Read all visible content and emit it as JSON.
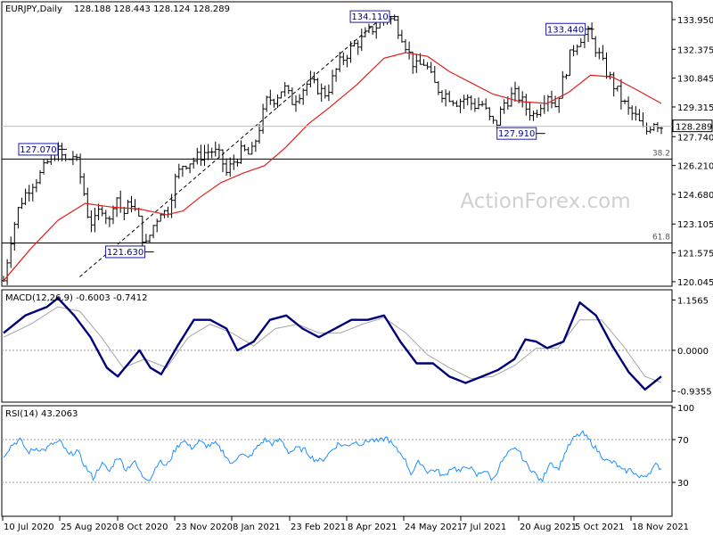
{
  "chart_data": {
    "type": "ohlc",
    "header": {
      "symbol_timeframe": "EURJPY,Daily",
      "ohlc_text": "128.188 128.443 128.124 128.289"
    },
    "watermark": "ActionForex.com",
    "colors": {
      "candles": "#000000",
      "moving_average": "#e0201b",
      "trendline": "#000000",
      "macd": "#00007a",
      "macd_signal": "#a6a6a6",
      "rsi": "#1e90ff",
      "label_border": "#1a1aaa",
      "watermark": "#d0d0d0"
    },
    "price_axis": {
      "ylim": [
        119.9,
        134.8
      ],
      "tick_labels": [
        "133.950",
        "132.375",
        "130.845",
        "129.315",
        "127.740",
        "126.210",
        "124.680",
        "123.105",
        "121.575",
        "120.045"
      ],
      "tick_values": [
        133.95,
        132.375,
        130.845,
        129.315,
        127.74,
        126.21,
        124.68,
        123.105,
        121.575,
        120.045
      ],
      "current_price_label": "128.289",
      "current_price": 128.289
    },
    "date_axis": {
      "labels": [
        "10 Jul 2020",
        "25 Aug 2020",
        "8 Oct 2020",
        "23 Nov 2020",
        "8 Jan 2021",
        "23 Feb 2021",
        "8 Apr 2021",
        "24 May 2021",
        "7 Jul 2021",
        "20 Aug 2021",
        "5 Oct 2021",
        "18 Nov 2021"
      ]
    },
    "annotations": [
      {
        "label": "127.070",
        "value": 127.07,
        "date_index": 1.0
      },
      {
        "label": "121.630",
        "value": 121.63,
        "date_index": 2.6
      },
      {
        "label": "134.110",
        "value": 134.11,
        "date_index": 7.1
      },
      {
        "label": "127.910",
        "value": 127.91,
        "date_index": 9.8
      },
      {
        "label": "133.440",
        "value": 133.44,
        "date_index": 10.7
      }
    ],
    "fib_levels": [
      {
        "label": "38.2",
        "value": 126.55
      },
      {
        "label": "61.8",
        "value": 122.1
      }
    ],
    "trendline": {
      "from": {
        "date_index": 1.4,
        "value": 120.3
      },
      "to": {
        "date_index": 6.9,
        "value": 133.9
      }
    },
    "price_series": [
      {
        "t": 0.0,
        "v": 120.1
      },
      {
        "t": 0.15,
        "v": 122.6
      },
      {
        "t": 0.3,
        "v": 124.2
      },
      {
        "t": 0.5,
        "v": 125.2
      },
      {
        "t": 0.7,
        "v": 125.8
      },
      {
        "t": 0.85,
        "v": 126.6
      },
      {
        "t": 1.0,
        "v": 127.0
      },
      {
        "t": 1.15,
        "v": 126.4
      },
      {
        "t": 1.3,
        "v": 126.8
      },
      {
        "t": 1.45,
        "v": 125.2
      },
      {
        "t": 1.55,
        "v": 123.6
      },
      {
        "t": 1.65,
        "v": 123.0
      },
      {
        "t": 1.8,
        "v": 124.1
      },
      {
        "t": 1.95,
        "v": 123.2
      },
      {
        "t": 2.05,
        "v": 124.8
      },
      {
        "t": 2.2,
        "v": 123.6
      },
      {
        "t": 2.35,
        "v": 124.3
      },
      {
        "t": 2.5,
        "v": 123.2
      },
      {
        "t": 2.6,
        "v": 121.8
      },
      {
        "t": 2.75,
        "v": 123.0
      },
      {
        "t": 2.9,
        "v": 123.9
      },
      {
        "t": 3.0,
        "v": 123.6
      },
      {
        "t": 3.15,
        "v": 125.4
      },
      {
        "t": 3.3,
        "v": 126.3
      },
      {
        "t": 3.5,
        "v": 126.5
      },
      {
        "t": 3.7,
        "v": 126.9
      },
      {
        "t": 3.85,
        "v": 127.0
      },
      {
        "t": 4.0,
        "v": 126.6
      },
      {
        "t": 4.1,
        "v": 125.8
      },
      {
        "t": 4.25,
        "v": 126.5
      },
      {
        "t": 4.4,
        "v": 127.0
      },
      {
        "t": 4.55,
        "v": 126.7
      },
      {
        "t": 4.7,
        "v": 128.2
      },
      {
        "t": 4.85,
        "v": 129.7
      },
      {
        "t": 5.0,
        "v": 129.8
      },
      {
        "t": 5.15,
        "v": 130.4
      },
      {
        "t": 5.3,
        "v": 129.6
      },
      {
        "t": 5.45,
        "v": 130.1
      },
      {
        "t": 5.6,
        "v": 130.6
      },
      {
        "t": 5.75,
        "v": 130.4
      },
      {
        "t": 5.9,
        "v": 130.0
      },
      {
        "t": 6.0,
        "v": 130.4
      },
      {
        "t": 6.15,
        "v": 131.5
      },
      {
        "t": 6.3,
        "v": 132.1
      },
      {
        "t": 6.45,
        "v": 132.6
      },
      {
        "t": 6.6,
        "v": 132.9
      },
      {
        "t": 6.75,
        "v": 133.4
      },
      {
        "t": 6.9,
        "v": 133.7
      },
      {
        "t": 7.05,
        "v": 134.1
      },
      {
        "t": 7.2,
        "v": 133.8
      },
      {
        "t": 7.35,
        "v": 133.0
      },
      {
        "t": 7.5,
        "v": 131.8
      },
      {
        "t": 7.6,
        "v": 131.4
      },
      {
        "t": 7.75,
        "v": 131.7
      },
      {
        "t": 7.9,
        "v": 130.6
      },
      {
        "t": 8.05,
        "v": 130.1
      },
      {
        "t": 8.2,
        "v": 129.9
      },
      {
        "t": 8.35,
        "v": 129.6
      },
      {
        "t": 8.5,
        "v": 129.8
      },
      {
        "t": 8.65,
        "v": 129.4
      },
      {
        "t": 8.8,
        "v": 129.5
      },
      {
        "t": 8.95,
        "v": 128.6
      },
      {
        "t": 9.05,
        "v": 128.3
      },
      {
        "t": 9.2,
        "v": 129.5
      },
      {
        "t": 9.35,
        "v": 129.9
      },
      {
        "t": 9.45,
        "v": 130.0
      },
      {
        "t": 9.6,
        "v": 129.3
      },
      {
        "t": 9.75,
        "v": 128.9
      },
      {
        "t": 9.9,
        "v": 129.6
      },
      {
        "t": 10.0,
        "v": 130.1
      },
      {
        "t": 10.15,
        "v": 129.4
      },
      {
        "t": 10.3,
        "v": 130.8
      },
      {
        "t": 10.45,
        "v": 132.3
      },
      {
        "t": 10.6,
        "v": 133.0
      },
      {
        "t": 10.75,
        "v": 133.2
      },
      {
        "t": 10.9,
        "v": 132.4
      },
      {
        "t": 11.05,
        "v": 131.4
      },
      {
        "t": 11.2,
        "v": 130.6
      },
      {
        "t": 11.35,
        "v": 129.8
      },
      {
        "t": 11.5,
        "v": 129.1
      },
      {
        "t": 11.65,
        "v": 128.7
      },
      {
        "t": 11.8,
        "v": 127.9
      },
      {
        "t": 11.95,
        "v": 128.6
      },
      {
        "t": 12.1,
        "v": 128.3
      }
    ],
    "moving_average": [
      {
        "t": 0.0,
        "v": 120.1
      },
      {
        "t": 0.5,
        "v": 121.8
      },
      {
        "t": 1.0,
        "v": 123.3
      },
      {
        "t": 1.5,
        "v": 124.2
      },
      {
        "t": 2.0,
        "v": 124.0
      },
      {
        "t": 2.5,
        "v": 123.9
      },
      {
        "t": 3.0,
        "v": 123.6
      },
      {
        "t": 3.3,
        "v": 123.8
      },
      {
        "t": 3.6,
        "v": 124.5
      },
      {
        "t": 4.0,
        "v": 125.3
      },
      {
        "t": 4.4,
        "v": 125.8
      },
      {
        "t": 4.8,
        "v": 126.2
      },
      {
        "t": 5.2,
        "v": 127.2
      },
      {
        "t": 5.6,
        "v": 128.4
      },
      {
        "t": 6.0,
        "v": 129.3
      },
      {
        "t": 6.5,
        "v": 130.5
      },
      {
        "t": 7.0,
        "v": 131.9
      },
      {
        "t": 7.4,
        "v": 132.2
      },
      {
        "t": 7.8,
        "v": 132.0
      },
      {
        "t": 8.2,
        "v": 131.2
      },
      {
        "t": 8.6,
        "v": 130.6
      },
      {
        "t": 9.0,
        "v": 130.0
      },
      {
        "t": 9.5,
        "v": 129.6
      },
      {
        "t": 10.0,
        "v": 129.5
      },
      {
        "t": 10.4,
        "v": 130.1
      },
      {
        "t": 10.8,
        "v": 131.0
      },
      {
        "t": 11.2,
        "v": 130.9
      },
      {
        "t": 11.6,
        "v": 130.3
      },
      {
        "t": 12.1,
        "v": 129.5
      }
    ],
    "macd": {
      "title": "MACD(12,26,9) -0.6003 -0.7412",
      "ylim": [
        -1.15,
        1.35
      ],
      "tick_labels": [
        "1.1565",
        "0.0000",
        "-0.9355"
      ],
      "tick_values": [
        1.1565,
        0.0,
        -0.9355
      ],
      "macd_line": [
        {
          "t": 0.0,
          "v": 0.4
        },
        {
          "t": 0.4,
          "v": 0.8
        },
        {
          "t": 0.8,
          "v": 1.0
        },
        {
          "t": 1.0,
          "v": 1.2
        },
        {
          "t": 1.3,
          "v": 0.8
        },
        {
          "t": 1.6,
          "v": 0.3
        },
        {
          "t": 1.9,
          "v": -0.4
        },
        {
          "t": 2.1,
          "v": -0.6
        },
        {
          "t": 2.3,
          "v": -0.3
        },
        {
          "t": 2.5,
          "v": 0.0
        },
        {
          "t": 2.7,
          "v": -0.4
        },
        {
          "t": 2.9,
          "v": -0.55
        },
        {
          "t": 3.2,
          "v": 0.1
        },
        {
          "t": 3.5,
          "v": 0.7
        },
        {
          "t": 3.8,
          "v": 0.7
        },
        {
          "t": 4.1,
          "v": 0.5
        },
        {
          "t": 4.3,
          "v": 0.0
        },
        {
          "t": 4.6,
          "v": 0.2
        },
        {
          "t": 4.9,
          "v": 0.7
        },
        {
          "t": 5.2,
          "v": 0.8
        },
        {
          "t": 5.5,
          "v": 0.5
        },
        {
          "t": 5.8,
          "v": 0.3
        },
        {
          "t": 6.1,
          "v": 0.5
        },
        {
          "t": 6.4,
          "v": 0.7
        },
        {
          "t": 6.7,
          "v": 0.7
        },
        {
          "t": 7.0,
          "v": 0.8
        },
        {
          "t": 7.3,
          "v": 0.2
        },
        {
          "t": 7.6,
          "v": -0.3
        },
        {
          "t": 7.9,
          "v": -0.3
        },
        {
          "t": 8.2,
          "v": -0.6
        },
        {
          "t": 8.5,
          "v": -0.75
        },
        {
          "t": 8.8,
          "v": -0.6
        },
        {
          "t": 9.1,
          "v": -0.45
        },
        {
          "t": 9.4,
          "v": -0.2
        },
        {
          "t": 9.6,
          "v": 0.25
        },
        {
          "t": 9.8,
          "v": 0.2
        },
        {
          "t": 10.0,
          "v": 0.05
        },
        {
          "t": 10.3,
          "v": 0.2
        },
        {
          "t": 10.6,
          "v": 1.1
        },
        {
          "t": 10.9,
          "v": 0.8
        },
        {
          "t": 11.2,
          "v": 0.1
        },
        {
          "t": 11.5,
          "v": -0.5
        },
        {
          "t": 11.8,
          "v": -0.9
        },
        {
          "t": 12.1,
          "v": -0.6
        }
      ],
      "signal_line": [
        {
          "t": 0.0,
          "v": 0.3
        },
        {
          "t": 0.5,
          "v": 0.6
        },
        {
          "t": 1.0,
          "v": 1.0
        },
        {
          "t": 1.4,
          "v": 0.9
        },
        {
          "t": 1.8,
          "v": 0.3
        },
        {
          "t": 2.2,
          "v": -0.4
        },
        {
          "t": 2.6,
          "v": -0.2
        },
        {
          "t": 3.0,
          "v": -0.4
        },
        {
          "t": 3.4,
          "v": 0.3
        },
        {
          "t": 3.8,
          "v": 0.6
        },
        {
          "t": 4.2,
          "v": 0.4
        },
        {
          "t": 4.6,
          "v": 0.1
        },
        {
          "t": 5.0,
          "v": 0.5
        },
        {
          "t": 5.4,
          "v": 0.6
        },
        {
          "t": 5.8,
          "v": 0.4
        },
        {
          "t": 6.2,
          "v": 0.4
        },
        {
          "t": 6.6,
          "v": 0.6
        },
        {
          "t": 7.0,
          "v": 0.75
        },
        {
          "t": 7.4,
          "v": 0.4
        },
        {
          "t": 7.8,
          "v": -0.1
        },
        {
          "t": 8.2,
          "v": -0.4
        },
        {
          "t": 8.6,
          "v": -0.65
        },
        {
          "t": 9.0,
          "v": -0.6
        },
        {
          "t": 9.4,
          "v": -0.35
        },
        {
          "t": 9.8,
          "v": 0.05
        },
        {
          "t": 10.2,
          "v": 0.05
        },
        {
          "t": 10.6,
          "v": 0.7
        },
        {
          "t": 11.0,
          "v": 0.7
        },
        {
          "t": 11.4,
          "v": 0.1
        },
        {
          "t": 11.8,
          "v": -0.6
        },
        {
          "t": 12.1,
          "v": -0.74
        }
      ]
    },
    "rsi": {
      "title": "RSI(14) 43.2063",
      "ylim": [
        0,
        100
      ],
      "tick_labels": [
        "100",
        "70",
        "30"
      ],
      "tick_values": [
        100,
        70,
        30
      ],
      "series": [
        {
          "t": 0.0,
          "v": 55
        },
        {
          "t": 0.15,
          "v": 65
        },
        {
          "t": 0.3,
          "v": 70
        },
        {
          "t": 0.45,
          "v": 58
        },
        {
          "t": 0.6,
          "v": 62
        },
        {
          "t": 0.75,
          "v": 60
        },
        {
          "t": 0.9,
          "v": 66
        },
        {
          "t": 1.05,
          "v": 68
        },
        {
          "t": 1.2,
          "v": 55
        },
        {
          "t": 1.35,
          "v": 60
        },
        {
          "t": 1.5,
          "v": 45
        },
        {
          "t": 1.65,
          "v": 34
        },
        {
          "t": 1.8,
          "v": 48
        },
        {
          "t": 1.95,
          "v": 40
        },
        {
          "t": 2.1,
          "v": 55
        },
        {
          "t": 2.25,
          "v": 42
        },
        {
          "t": 2.4,
          "v": 50
        },
        {
          "t": 2.55,
          "v": 36
        },
        {
          "t": 2.7,
          "v": 33
        },
        {
          "t": 2.85,
          "v": 50
        },
        {
          "t": 3.0,
          "v": 45
        },
        {
          "t": 3.15,
          "v": 60
        },
        {
          "t": 3.3,
          "v": 70
        },
        {
          "t": 3.45,
          "v": 62
        },
        {
          "t": 3.6,
          "v": 68
        },
        {
          "t": 3.75,
          "v": 64
        },
        {
          "t": 3.9,
          "v": 66
        },
        {
          "t": 4.05,
          "v": 58
        },
        {
          "t": 4.2,
          "v": 46
        },
        {
          "t": 4.35,
          "v": 58
        },
        {
          "t": 4.5,
          "v": 52
        },
        {
          "t": 4.65,
          "v": 62
        },
        {
          "t": 4.8,
          "v": 70
        },
        {
          "t": 4.95,
          "v": 66
        },
        {
          "t": 5.1,
          "v": 70
        },
        {
          "t": 5.25,
          "v": 58
        },
        {
          "t": 5.4,
          "v": 62
        },
        {
          "t": 5.55,
          "v": 60
        },
        {
          "t": 5.7,
          "v": 52
        },
        {
          "t": 5.85,
          "v": 50
        },
        {
          "t": 6.0,
          "v": 58
        },
        {
          "t": 6.15,
          "v": 66
        },
        {
          "t": 6.3,
          "v": 64
        },
        {
          "t": 6.45,
          "v": 68
        },
        {
          "t": 6.6,
          "v": 66
        },
        {
          "t": 6.75,
          "v": 70
        },
        {
          "t": 6.9,
          "v": 68
        },
        {
          "t": 7.05,
          "v": 72
        },
        {
          "t": 7.2,
          "v": 62
        },
        {
          "t": 7.35,
          "v": 55
        },
        {
          "t": 7.5,
          "v": 38
        },
        {
          "t": 7.65,
          "v": 50
        },
        {
          "t": 7.8,
          "v": 40
        },
        {
          "t": 7.95,
          "v": 42
        },
        {
          "t": 8.1,
          "v": 35
        },
        {
          "t": 8.25,
          "v": 45
        },
        {
          "t": 8.4,
          "v": 40
        },
        {
          "t": 8.55,
          "v": 46
        },
        {
          "t": 8.7,
          "v": 36
        },
        {
          "t": 8.85,
          "v": 42
        },
        {
          "t": 9.0,
          "v": 32
        },
        {
          "t": 9.15,
          "v": 48
        },
        {
          "t": 9.3,
          "v": 58
        },
        {
          "t": 9.45,
          "v": 62
        },
        {
          "t": 9.6,
          "v": 48
        },
        {
          "t": 9.75,
          "v": 40
        },
        {
          "t": 9.9,
          "v": 30
        },
        {
          "t": 10.05,
          "v": 50
        },
        {
          "t": 10.2,
          "v": 42
        },
        {
          "t": 10.35,
          "v": 60
        },
        {
          "t": 10.5,
          "v": 72
        },
        {
          "t": 10.65,
          "v": 76
        },
        {
          "t": 10.8,
          "v": 68
        },
        {
          "t": 10.95,
          "v": 58
        },
        {
          "t": 11.1,
          "v": 50
        },
        {
          "t": 11.25,
          "v": 48
        },
        {
          "t": 11.4,
          "v": 40
        },
        {
          "t": 11.55,
          "v": 42
        },
        {
          "t": 11.7,
          "v": 34
        },
        {
          "t": 11.85,
          "v": 38
        },
        {
          "t": 12.0,
          "v": 46
        },
        {
          "t": 12.1,
          "v": 43.2
        }
      ]
    }
  }
}
